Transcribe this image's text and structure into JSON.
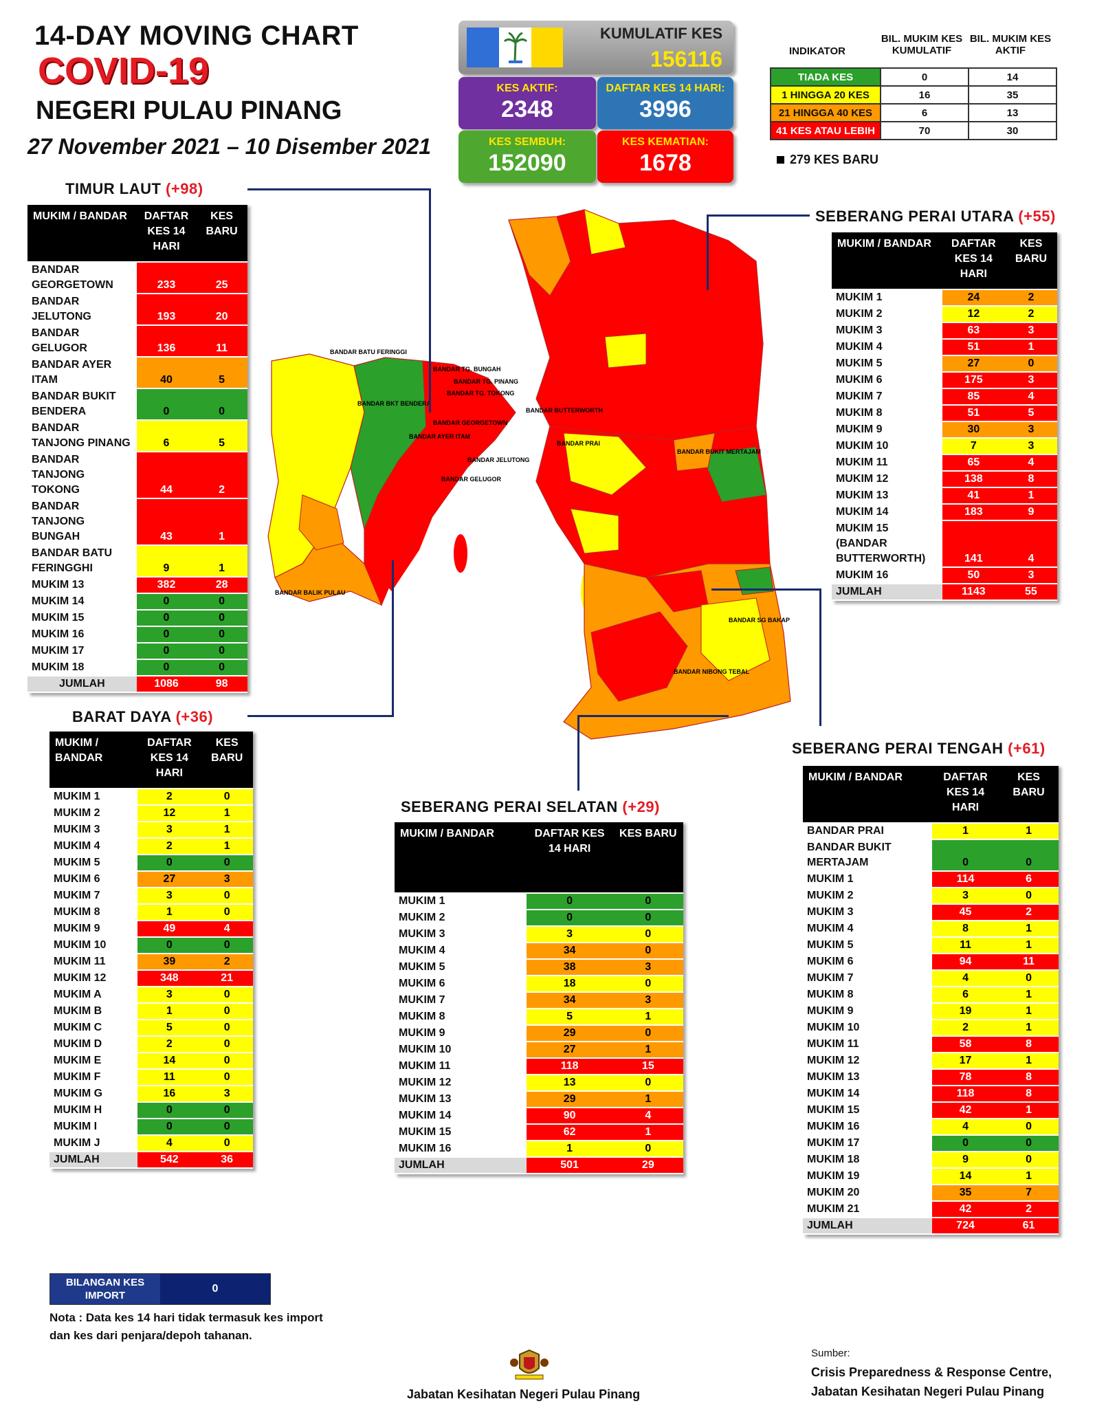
{
  "header": {
    "title1": "14-DAY MOVING CHART",
    "title2": "COVID-19",
    "title3": "NEGERI PULAU PINANG",
    "date": "27 November 2021 – 10 Disember 2021"
  },
  "summary": {
    "kumulatif_label": "KUMULATIF KES",
    "kumulatif_value": "156116",
    "aktif_label": "KES AKTIF:",
    "aktif_value": "2348",
    "daftar_label": "DAFTAR KES 14 HARI:",
    "daftar_value": "3996",
    "sembuh_label": "KES SEMBUH:",
    "sembuh_value": "152090",
    "kematian_label": "KES KEMATIAN:",
    "kematian_value": "1678",
    "colors": {
      "purple": "#7030a0",
      "blue": "#2e75b6",
      "green": "#4ea72e",
      "red": "#ff0000",
      "flag_blue": "#2f6fd6",
      "flag_yellow": "#ffd800"
    }
  },
  "indicator": {
    "h_indikator": "INDIKATOR",
    "h_col1": "BIL. MUKIM KES KUMULATIF",
    "h_col2": "BIL. MUKIM KES AKTIF",
    "rows": [
      {
        "label": "TIADA KES",
        "c1": "0",
        "c2": "14"
      },
      {
        "label": "1 HINGGA 20 KES",
        "c1": "16",
        "c2": "35"
      },
      {
        "label": "21 HINGGA 40 KES",
        "c1": "6",
        "c2": "13"
      },
      {
        "label": "41 KES ATAU LEBIH",
        "c1": "70",
        "c2": "30"
      }
    ],
    "new_cases": "279 KES BARU"
  },
  "timur_laut": {
    "title": "TIMUR LAUT",
    "plus": "(+98)",
    "h1": "MUKIM / BANDAR",
    "h2": "DAFTAR KES 14 HARI",
    "h3": "KES BARU",
    "rows": [
      {
        "name": "BANDAR GEORGETOWN",
        "a": "233",
        "b": "25",
        "ca": "r",
        "cb": "r"
      },
      {
        "name": "BANDAR JELUTONG",
        "a": "193",
        "b": "20",
        "ca": "r",
        "cb": "r"
      },
      {
        "name": "BANDAR GELUGOR",
        "a": "136",
        "b": "11",
        "ca": "r",
        "cb": "r"
      },
      {
        "name": "BANDAR AYER ITAM",
        "a": "40",
        "b": "5",
        "ca": "o",
        "cb": "o"
      },
      {
        "name": "BANDAR BUKIT BENDERA",
        "a": "0",
        "b": "0",
        "ca": "g",
        "cb": "g"
      },
      {
        "name": "BANDAR TANJONG PINANG",
        "a": "6",
        "b": "5",
        "ca": "y",
        "cb": "y"
      },
      {
        "name": "BANDAR TANJONG TOKONG",
        "a": "44",
        "b": "2",
        "ca": "r",
        "cb": "r"
      },
      {
        "name": "BANDAR TANJONG BUNGAH",
        "a": "43",
        "b": "1",
        "ca": "r",
        "cb": "r"
      },
      {
        "name": "BANDAR BATU FERINGGHI",
        "a": "9",
        "b": "1",
        "ca": "y",
        "cb": "y"
      },
      {
        "name": "MUKIM 13",
        "a": "382",
        "b": "28",
        "ca": "r",
        "cb": "r"
      },
      {
        "name": "MUKIM 14",
        "a": "0",
        "b": "0",
        "ca": "g",
        "cb": "g"
      },
      {
        "name": "MUKIM 15",
        "a": "0",
        "b": "0",
        "ca": "g",
        "cb": "g"
      },
      {
        "name": "MUKIM 16",
        "a": "0",
        "b": "0",
        "ca": "g",
        "cb": "g"
      },
      {
        "name": "MUKIM 17",
        "a": "0",
        "b": "0",
        "ca": "g",
        "cb": "g"
      },
      {
        "name": "MUKIM 18",
        "a": "0",
        "b": "0",
        "ca": "g",
        "cb": "g"
      }
    ],
    "total_label": "JUMLAH",
    "total_a": "1086",
    "total_b": "98"
  },
  "barat_daya": {
    "title": "BARAT DAYA",
    "plus": "(+36)",
    "h1": "MUKIM / BANDAR",
    "h2": "DAFTAR KES 14 HARI",
    "h3": "KES BARU",
    "rows": [
      {
        "name": "MUKIM 1",
        "a": "2",
        "b": "0",
        "ca": "y",
        "cb": "y"
      },
      {
        "name": "MUKIM 2",
        "a": "12",
        "b": "1",
        "ca": "y",
        "cb": "y"
      },
      {
        "name": "MUKIM 3",
        "a": "3",
        "b": "1",
        "ca": "y",
        "cb": "y"
      },
      {
        "name": "MUKIM 4",
        "a": "2",
        "b": "1",
        "ca": "y",
        "cb": "y"
      },
      {
        "name": "MUKIM 5",
        "a": "0",
        "b": "0",
        "ca": "g",
        "cb": "g"
      },
      {
        "name": "MUKIM 6",
        "a": "27",
        "b": "3",
        "ca": "o",
        "cb": "o"
      },
      {
        "name": "MUKIM 7",
        "a": "3",
        "b": "0",
        "ca": "y",
        "cb": "y"
      },
      {
        "name": "MUKIM 8",
        "a": "1",
        "b": "0",
        "ca": "y",
        "cb": "y"
      },
      {
        "name": "MUKIM 9",
        "a": "49",
        "b": "4",
        "ca": "r",
        "cb": "r"
      },
      {
        "name": "MUKIM 10",
        "a": "0",
        "b": "0",
        "ca": "g",
        "cb": "g"
      },
      {
        "name": "MUKIM 11",
        "a": "39",
        "b": "2",
        "ca": "o",
        "cb": "o"
      },
      {
        "name": "MUKIM 12",
        "a": "348",
        "b": "21",
        "ca": "r",
        "cb": "r"
      },
      {
        "name": "MUKIM A",
        "a": "3",
        "b": "0",
        "ca": "y",
        "cb": "y"
      },
      {
        "name": "MUKIM B",
        "a": "1",
        "b": "0",
        "ca": "y",
        "cb": "y"
      },
      {
        "name": "MUKIM C",
        "a": "5",
        "b": "0",
        "ca": "y",
        "cb": "y"
      },
      {
        "name": "MUKIM D",
        "a": "2",
        "b": "0",
        "ca": "y",
        "cb": "y"
      },
      {
        "name": "MUKIM E",
        "a": "14",
        "b": "0",
        "ca": "y",
        "cb": "y"
      },
      {
        "name": "MUKIM F",
        "a": "11",
        "b": "0",
        "ca": "y",
        "cb": "y"
      },
      {
        "name": "MUKIM G",
        "a": "16",
        "b": "3",
        "ca": "y",
        "cb": "y"
      },
      {
        "name": "MUKIM H",
        "a": "0",
        "b": "0",
        "ca": "g",
        "cb": "g"
      },
      {
        "name": "MUKIM I",
        "a": "0",
        "b": "0",
        "ca": "g",
        "cb": "g"
      },
      {
        "name": "MUKIM J",
        "a": "4",
        "b": "0",
        "ca": "y",
        "cb": "y"
      }
    ],
    "total_label": "JUMLAH",
    "total_a": "542",
    "total_b": "36"
  },
  "spu": {
    "title": "SEBERANG PERAI UTARA",
    "plus": "(+55)",
    "h1": "MUKIM / BANDAR",
    "h2": "DAFTAR KES 14 HARI",
    "h3": "KES BARU",
    "rows": [
      {
        "name": "MUKIM 1",
        "a": "24",
        "b": "2",
        "ca": "o",
        "cb": "o"
      },
      {
        "name": "MUKIM 2",
        "a": "12",
        "b": "2",
        "ca": "y",
        "cb": "y"
      },
      {
        "name": "MUKIM 3",
        "a": "63",
        "b": "3",
        "ca": "r",
        "cb": "r"
      },
      {
        "name": "MUKIM 4",
        "a": "51",
        "b": "1",
        "ca": "r",
        "cb": "r"
      },
      {
        "name": "MUKIM 5",
        "a": "27",
        "b": "0",
        "ca": "o",
        "cb": "o"
      },
      {
        "name": "MUKIM 6",
        "a": "175",
        "b": "3",
        "ca": "r",
        "cb": "r"
      },
      {
        "name": "MUKIM 7",
        "a": "85",
        "b": "4",
        "ca": "r",
        "cb": "r"
      },
      {
        "name": "MUKIM 8",
        "a": "51",
        "b": "5",
        "ca": "r",
        "cb": "r"
      },
      {
        "name": "MUKIM 9",
        "a": "30",
        "b": "3",
        "ca": "o",
        "cb": "o"
      },
      {
        "name": "MUKIM 10",
        "a": "7",
        "b": "3",
        "ca": "y",
        "cb": "y"
      },
      {
        "name": "MUKIM 11",
        "a": "65",
        "b": "4",
        "ca": "r",
        "cb": "r"
      },
      {
        "name": "MUKIM 12",
        "a": "138",
        "b": "8",
        "ca": "r",
        "cb": "r"
      },
      {
        "name": "MUKIM 13",
        "a": "41",
        "b": "1",
        "ca": "r",
        "cb": "r"
      },
      {
        "name": "MUKIM 14",
        "a": "183",
        "b": "9",
        "ca": "r",
        "cb": "r"
      },
      {
        "name": "MUKIM 15 (BANDAR BUTTERWORTH)",
        "a": "141",
        "b": "4",
        "ca": "r",
        "cb": "r"
      },
      {
        "name": "MUKIM 16",
        "a": "50",
        "b": "3",
        "ca": "r",
        "cb": "r"
      }
    ],
    "total_label": "JUMLAH",
    "total_a": "1143",
    "total_b": "55"
  },
  "spt": {
    "title": "SEBERANG PERAI TENGAH",
    "plus": "(+61)",
    "h1": "MUKIM / BANDAR",
    "h2": "DAFTAR KES 14 HARI",
    "h3": "KES BARU",
    "rows": [
      {
        "name": "BANDAR PRAI",
        "a": "1",
        "b": "1",
        "ca": "y",
        "cb": "y"
      },
      {
        "name": "BANDAR BUKIT MERTAJAM",
        "a": "0",
        "b": "0",
        "ca": "g",
        "cb": "g"
      },
      {
        "name": "MUKIM 1",
        "a": "114",
        "b": "6",
        "ca": "r",
        "cb": "r"
      },
      {
        "name": "MUKIM 2",
        "a": "3",
        "b": "0",
        "ca": "y",
        "cb": "y"
      },
      {
        "name": "MUKIM 3",
        "a": "45",
        "b": "2",
        "ca": "r",
        "cb": "r"
      },
      {
        "name": "MUKIM 4",
        "a": "8",
        "b": "1",
        "ca": "y",
        "cb": "y"
      },
      {
        "name": "MUKIM 5",
        "a": "11",
        "b": "1",
        "ca": "y",
        "cb": "y"
      },
      {
        "name": "MUKIM 6",
        "a": "94",
        "b": "11",
        "ca": "r",
        "cb": "r"
      },
      {
        "name": "MUKIM 7",
        "a": "4",
        "b": "0",
        "ca": "y",
        "cb": "y"
      },
      {
        "name": "MUKIM 8",
        "a": "6",
        "b": "1",
        "ca": "y",
        "cb": "y"
      },
      {
        "name": "MUKIM 9",
        "a": "19",
        "b": "1",
        "ca": "y",
        "cb": "y"
      },
      {
        "name": "MUKIM 10",
        "a": "2",
        "b": "1",
        "ca": "y",
        "cb": "y"
      },
      {
        "name": "MUKIM 11",
        "a": "58",
        "b": "8",
        "ca": "r",
        "cb": "r"
      },
      {
        "name": "MUKIM 12",
        "a": "17",
        "b": "1",
        "ca": "y",
        "cb": "y"
      },
      {
        "name": "MUKIM 13",
        "a": "78",
        "b": "8",
        "ca": "r",
        "cb": "r"
      },
      {
        "name": "MUKIM 14",
        "a": "118",
        "b": "8",
        "ca": "r",
        "cb": "r"
      },
      {
        "name": "MUKIM 15",
        "a": "42",
        "b": "1",
        "ca": "r",
        "cb": "r"
      },
      {
        "name": "MUKIM 16",
        "a": "4",
        "b": "0",
        "ca": "y",
        "cb": "y"
      },
      {
        "name": "MUKIM 17",
        "a": "0",
        "b": "0",
        "ca": "g",
        "cb": "g"
      },
      {
        "name": "MUKIM 18",
        "a": "9",
        "b": "0",
        "ca": "y",
        "cb": "y"
      },
      {
        "name": "MUKIM 19",
        "a": "14",
        "b": "1",
        "ca": "y",
        "cb": "y"
      },
      {
        "name": "MUKIM 20",
        "a": "35",
        "b": "7",
        "ca": "o",
        "cb": "o"
      },
      {
        "name": "MUKIM 21",
        "a": "42",
        "b": "2",
        "ca": "r",
        "cb": "r"
      }
    ],
    "total_label": "JUMLAH",
    "total_a": "724",
    "total_b": "61"
  },
  "sps": {
    "title": "SEBERANG PERAI SELATAN",
    "plus": "(+29)",
    "h1": "MUKIM / BANDAR",
    "h2": "DAFTAR KES 14 HARI",
    "h3": "KES BARU",
    "rows": [
      {
        "name": "MUKIM 1",
        "a": "0",
        "b": "0",
        "ca": "g",
        "cb": "g"
      },
      {
        "name": "MUKIM 2",
        "a": "0",
        "b": "0",
        "ca": "g",
        "cb": "g"
      },
      {
        "name": "MUKIM 3",
        "a": "3",
        "b": "0",
        "ca": "y",
        "cb": "y"
      },
      {
        "name": "MUKIM 4",
        "a": "34",
        "b": "0",
        "ca": "o",
        "cb": "o"
      },
      {
        "name": "MUKIM 5",
        "a": "38",
        "b": "3",
        "ca": "o",
        "cb": "o"
      },
      {
        "name": "MUKIM 6",
        "a": "18",
        "b": "0",
        "ca": "y",
        "cb": "y"
      },
      {
        "name": "MUKIM 7",
        "a": "34",
        "b": "3",
        "ca": "o",
        "cb": "o"
      },
      {
        "name": "MUKIM 8",
        "a": "5",
        "b": "1",
        "ca": "y",
        "cb": "y"
      },
      {
        "name": "MUKIM 9",
        "a": "29",
        "b": "0",
        "ca": "o",
        "cb": "o"
      },
      {
        "name": "MUKIM 10",
        "a": "27",
        "b": "1",
        "ca": "o",
        "cb": "o"
      },
      {
        "name": "MUKIM 11",
        "a": "118",
        "b": "15",
        "ca": "r",
        "cb": "r"
      },
      {
        "name": "MUKIM 12",
        "a": "13",
        "b": "0",
        "ca": "y",
        "cb": "y"
      },
      {
        "name": "MUKIM 13",
        "a": "29",
        "b": "1",
        "ca": "o",
        "cb": "o"
      },
      {
        "name": "MUKIM 14",
        "a": "90",
        "b": "4",
        "ca": "r",
        "cb": "r"
      },
      {
        "name": "MUKIM 15",
        "a": "62",
        "b": "1",
        "ca": "r",
        "cb": "r"
      },
      {
        "name": "MUKIM 16",
        "a": "1",
        "b": "0",
        "ca": "y",
        "cb": "y"
      }
    ],
    "total_label": "JUMLAH",
    "total_a": "501",
    "total_b": "29"
  },
  "import": {
    "label": "BILANGAN KES IMPORT",
    "value": "0"
  },
  "note": "Nota : Data kes 14 hari tidak termasuk kes import dan kes dari penjara/depoh tahanan.",
  "footer": {
    "dept": "Jabatan Kesihatan Negeri Pulau Pinang",
    "source_label": "Sumber:",
    "source1": "Crisis Preparedness & Response Centre,",
    "source2": "Jabatan Kesihatan Negeri Pulau Pinang"
  },
  "map": {
    "labels": [
      "BANDAR BATU FERINGGI",
      "BANDAR TG. BUNGAH",
      "BANDAR TG. PINANG",
      "BANDAR TG. TOKONG",
      "BANDAR BUTTERWORTH",
      "BANDAR GEORGETOWN",
      "BANDAR AYER ITAM",
      "BANDAR JELUTONG",
      "BANDAR GELUGOR",
      "BANDAR BKT BENDERA",
      "BANDAR PRAI",
      "BANDAR BUKIT MERTAJAM",
      "BANDAR SG BAKAP",
      "BANDAR NIBONG TEBAL",
      "BANDAR BALIK PULAU"
    ]
  }
}
